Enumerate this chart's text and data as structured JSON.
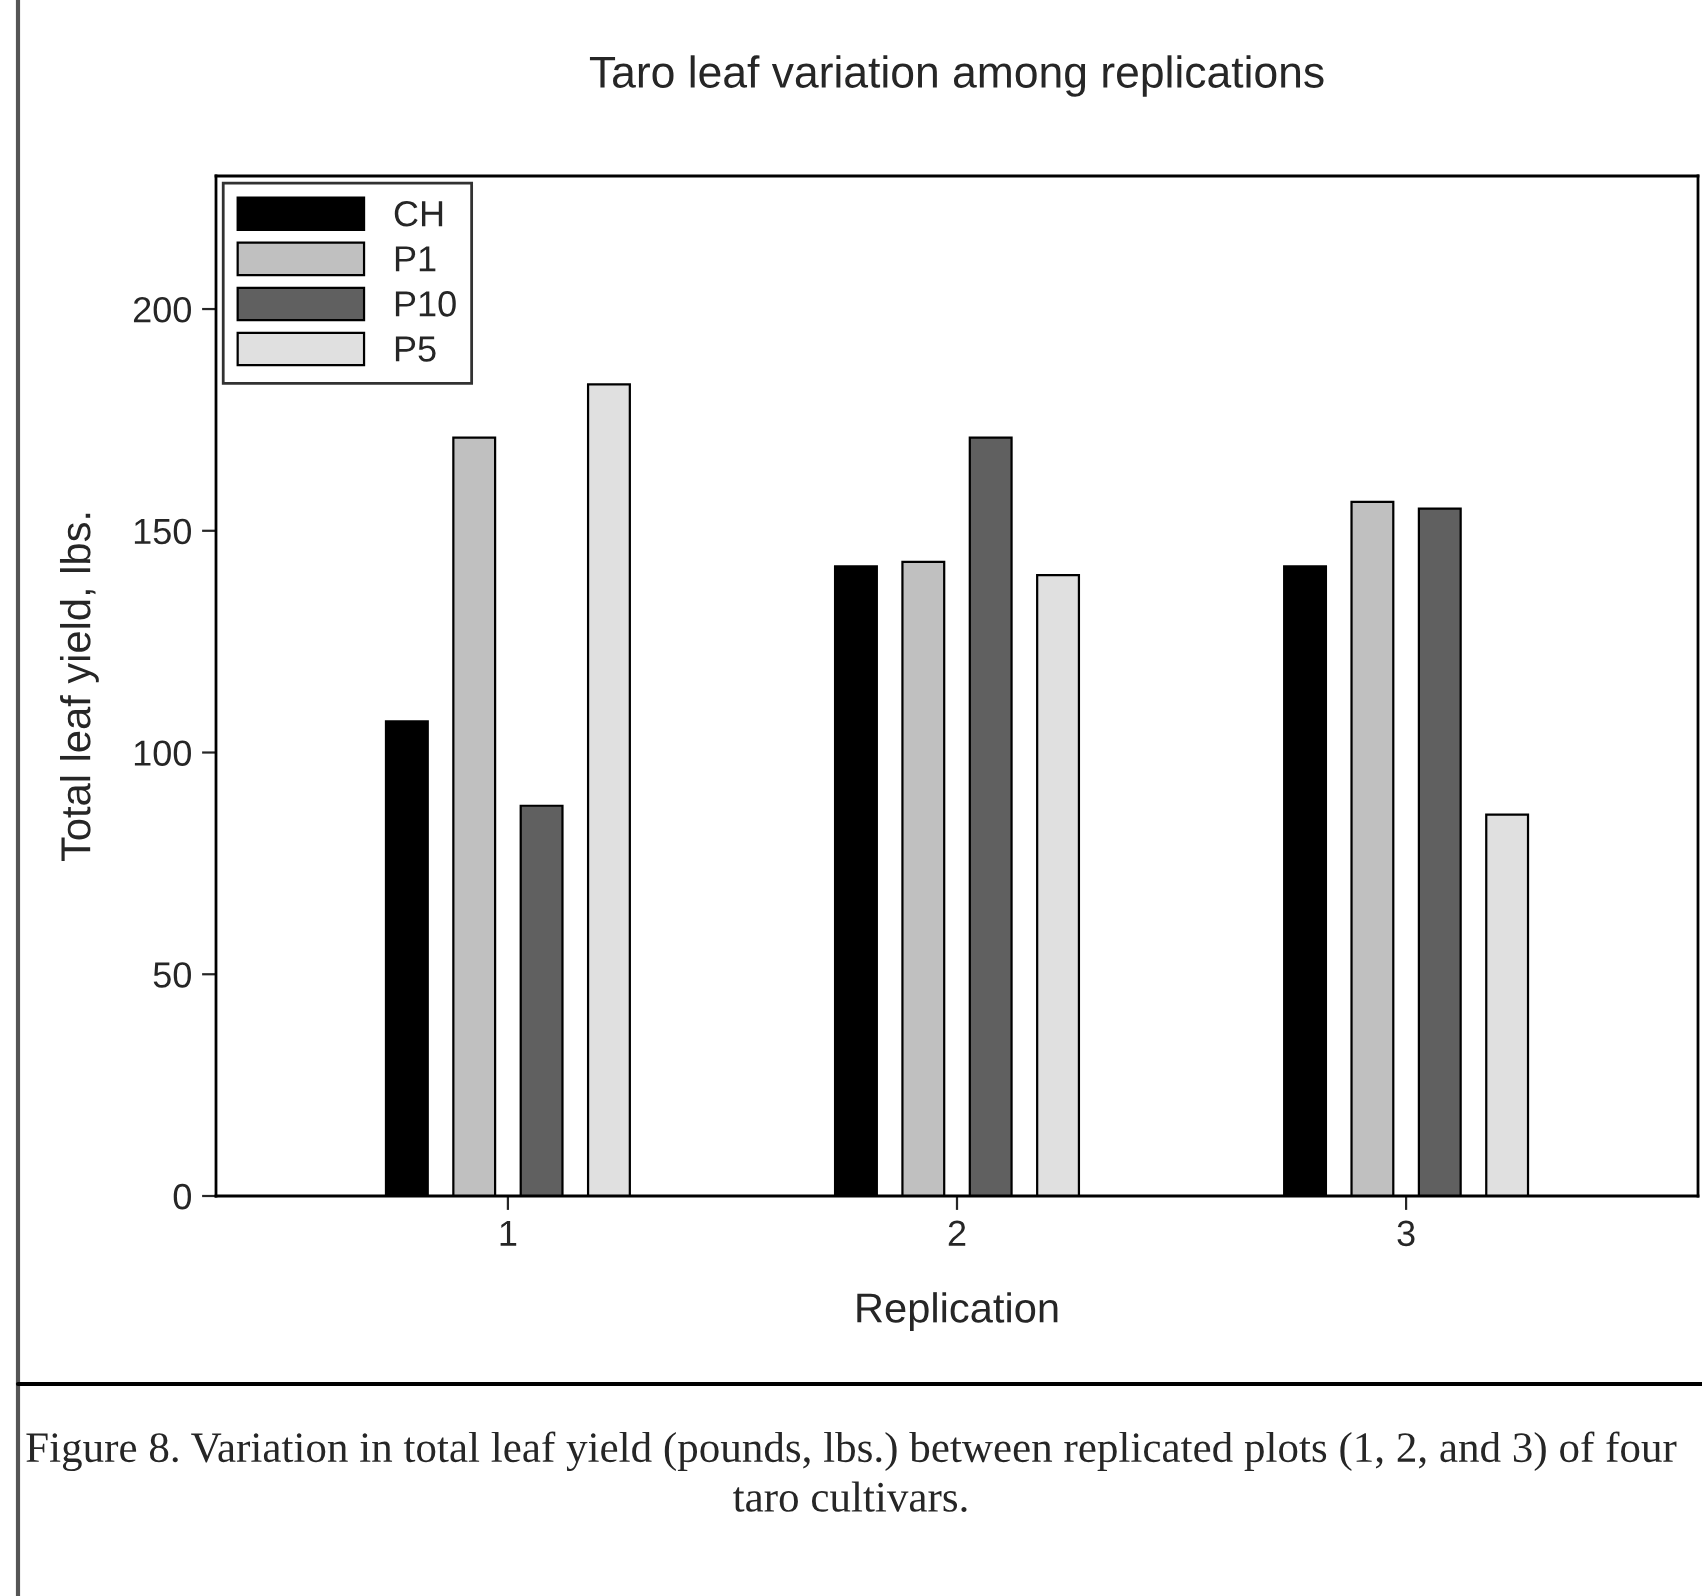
{
  "chart_data": {
    "type": "bar",
    "title": "Taro leaf variation among replications",
    "xlabel": "Replication",
    "ylabel": "Total leaf yield, lbs.",
    "categories": [
      "1",
      "2",
      "3"
    ],
    "series": [
      {
        "name": "CH",
        "color": "#000000",
        "values": [
          107,
          142,
          142
        ]
      },
      {
        "name": "P1",
        "color": "#c0c0c0",
        "values": [
          171,
          143,
          156.5
        ]
      },
      {
        "name": "P10",
        "color": "#606060",
        "values": [
          88,
          171,
          155
        ]
      },
      {
        "name": "P5",
        "color": "#e0e0e0",
        "values": [
          183,
          140,
          86
        ]
      }
    ],
    "ylim": [
      0,
      230
    ],
    "yticks": [
      0,
      50,
      100,
      150,
      200
    ],
    "grid": false,
    "legend": "top left",
    "annotations": [
      "Figure 8. Variation in total leaf yield (pounds, lbs.) between replicated plots (1, 2, and 3) of four taro cultivars."
    ]
  }
}
